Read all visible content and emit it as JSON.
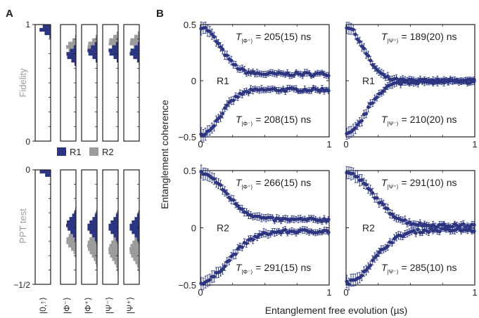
{
  "panel_labels": {
    "a": "A",
    "b": "B"
  },
  "colors": {
    "r1": "#2b3580",
    "r2": "#9c9c9c",
    "axis": "#231f20"
  },
  "legend": {
    "r1": "R1",
    "r2": "R2"
  },
  "panel_a": {
    "fidelity_label": "Fidelity",
    "fidelity_ticks": [
      "1",
      "0"
    ],
    "ppt_label": "PPT test",
    "ppt_ticks": [
      "0",
      "−1/2"
    ],
    "states": [
      "|0,↑⟩",
      "|Φ⁻⟩",
      "|Φ⁺⟩",
      "|Ψ⁻⟩",
      "|Ψ⁺⟩"
    ]
  },
  "panel_b": {
    "ylabel": "Entanglement coherence",
    "xlabel": "Entanglement free evolution (µs)",
    "yticks": [
      "0.5",
      "0",
      "−0.5"
    ],
    "xticks": [
      "0",
      "1"
    ]
  },
  "chart_data": [
    {
      "type": "histogram",
      "panel": "A-fidelity",
      "ylabel": "Fidelity",
      "ylim": [
        0,
        1
      ],
      "categories": [
        "|0,↑⟩",
        "|Φ⁻⟩",
        "|Φ⁺⟩",
        "|Ψ⁻⟩",
        "|Ψ⁺⟩"
      ],
      "series": [
        {
          "name": "R1",
          "distributions": [
            {
              "center": 0.96,
              "spread": 0.03
            },
            {
              "center": 0.74,
              "spread": 0.04
            },
            {
              "center": 0.77,
              "spread": 0.04
            },
            {
              "center": 0.77,
              "spread": 0.04
            },
            {
              "center": 0.76,
              "spread": 0.04
            }
          ]
        },
        {
          "name": "R2",
          "distributions": [
            {
              "center": 0.95,
              "spread": 0.02
            },
            {
              "center": 0.81,
              "spread": 0.04
            },
            {
              "center": 0.82,
              "spread": 0.04
            },
            {
              "center": 0.85,
              "spread": 0.04
            },
            {
              "center": 0.85,
              "spread": 0.04
            }
          ]
        }
      ]
    },
    {
      "type": "histogram",
      "panel": "A-ppt",
      "ylabel": "PPT test",
      "ylim": [
        -0.5,
        0
      ],
      "categories": [
        "|0,↑⟩",
        "|Φ⁻⟩",
        "|Φ⁺⟩",
        "|Ψ⁻⟩",
        "|Ψ⁺⟩"
      ],
      "series": [
        {
          "name": "R1",
          "distributions": [
            {
              "center": -0.01,
              "spread": 0.01
            },
            {
              "center": -0.24,
              "spread": 0.03
            },
            {
              "center": -0.25,
              "spread": 0.03
            },
            {
              "center": -0.25,
              "spread": 0.03
            },
            {
              "center": -0.25,
              "spread": 0.03
            }
          ]
        },
        {
          "name": "R2",
          "distributions": [
            {
              "center": -0.01,
              "spread": 0.01
            },
            {
              "center": -0.31,
              "spread": 0.03
            },
            {
              "center": -0.33,
              "spread": 0.04
            },
            {
              "center": -0.35,
              "spread": 0.04
            },
            {
              "center": -0.35,
              "spread": 0.04
            }
          ]
        }
      ]
    },
    {
      "type": "scatter",
      "panel": "B-R1-Phi",
      "label": "R1",
      "xlim": [
        0,
        1
      ],
      "ylim": [
        -0.5,
        0.5
      ],
      "series": [
        {
          "T_label": "|Φ⁺⟩",
          "T_text": "205(15) ns",
          "T_ns": 205,
          "sign": 1,
          "y_end": 0.06,
          "color": "#2b3580"
        },
        {
          "T_label": "|Φ⁻⟩",
          "T_text": "208(15) ns",
          "T_ns": 208,
          "sign": -1,
          "y_end": -0.08,
          "color": "#2b3580"
        }
      ]
    },
    {
      "type": "scatter",
      "panel": "B-R1-Psi",
      "label": "R1",
      "xlim": [
        0,
        1
      ],
      "ylim": [
        -0.5,
        0.5
      ],
      "series": [
        {
          "T_label": "|Ψ⁺⟩",
          "T_text": "189(20) ns",
          "T_ns": 189,
          "sign": 1,
          "y_end": 0.0,
          "color": "#2b3580"
        },
        {
          "T_label": "|Ψ⁻⟩",
          "T_text": "210(20) ns",
          "T_ns": 210,
          "sign": -1,
          "y_end": -0.01,
          "color": "#2b3580"
        }
      ]
    },
    {
      "type": "scatter",
      "panel": "B-R2-Phi",
      "label": "R2",
      "xlim": [
        0,
        1
      ],
      "ylim": [
        -0.5,
        0.5
      ],
      "series": [
        {
          "T_label": "|Φ⁺⟩",
          "T_text": "266(15) ns",
          "T_ns": 266,
          "sign": 1,
          "y_end": 0.07,
          "color": "#2b3580"
        },
        {
          "T_label": "|Φ⁻⟩",
          "T_text": "291(15) ns",
          "T_ns": 291,
          "sign": -1,
          "y_end": -0.03,
          "color": "#2b3580"
        }
      ]
    },
    {
      "type": "scatter",
      "panel": "B-R2-Psi",
      "label": "R2",
      "xlim": [
        0,
        1
      ],
      "ylim": [
        -0.5,
        0.5
      ],
      "series": [
        {
          "T_label": "|Ψ⁺⟩",
          "T_text": "291(10) ns",
          "T_ns": 291,
          "sign": 1,
          "y_end": 0.02,
          "color": "#2b3580"
        },
        {
          "T_label": "|Ψ⁻⟩",
          "T_text": "285(10) ns",
          "T_ns": 285,
          "sign": -1,
          "y_end": -0.02,
          "color": "#2b3580"
        }
      ]
    }
  ]
}
